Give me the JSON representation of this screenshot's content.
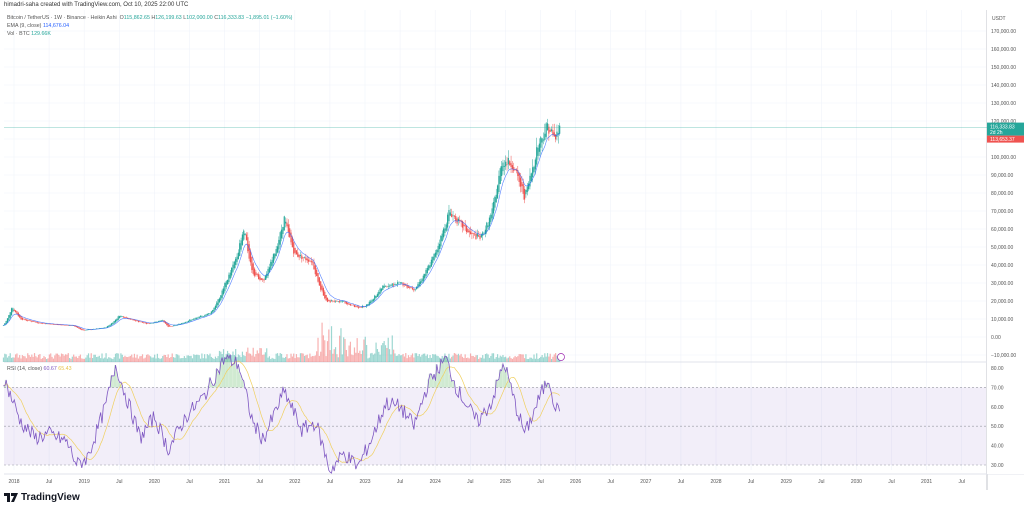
{
  "credit": "himadri-saha created with TradingView.com, Oct 10, 2025 22:00 UTC",
  "legend": {
    "symbol": "Bitcoin / TetherUS · 1W · Binance · Heikin Ashi",
    "o_label": "O",
    "o": "115,862.65",
    "h_label": "H",
    "h": "126,199.63",
    "l_label": "L",
    "l": "102,000.00",
    "c_label": "C",
    "c": "116,333.83",
    "chg": "−1,895.01 (−1.60%)",
    "ema_label": "EMA (9, close)",
    "ema": "114,676.04",
    "vol_label": "Vol · BTC",
    "vol": "129.66K"
  },
  "rsi_legend": {
    "label": "RSI (14, close)",
    "rsi": "60.67",
    "ma": "65.43"
  },
  "price_axis": {
    "unit": "USDT",
    "ticks": [
      "170,000.00",
      "160,000.00",
      "150,000.00",
      "140,000.00",
      "130,000.00",
      "120,000.00",
      "100,000.00",
      "90,000.00",
      "80,000.00",
      "70,000.00",
      "60,000.00",
      "50,000.00",
      "40,000.00",
      "30,000.00",
      "20,000.00",
      "10,000.00",
      "0.00",
      "−10,000.00"
    ],
    "last_price": "116,333.83",
    "countdown": "2d 2h",
    "ema_price": "113,653.37"
  },
  "rsi_axis": {
    "ticks": [
      "80.00",
      "70.00",
      "60.00",
      "50.00",
      "40.00",
      "30.00"
    ]
  },
  "time_axis": [
    "2018",
    "Jul",
    "2019",
    "Jul",
    "2020",
    "Jul",
    "2021",
    "Jul",
    "2022",
    "Jul",
    "2023",
    "Jul",
    "2024",
    "Jul",
    "2025",
    "Jul",
    "2026",
    "Jul",
    "2027",
    "Jul",
    "2028",
    "Jul",
    "2029",
    "Jul",
    "2030",
    "Jul",
    "2031",
    "Jul"
  ],
  "brand": "TradingView",
  "colors": {
    "up": "#26a69a",
    "down": "#ef5350",
    "ema": "#2962ff",
    "rsi": "#7e57c2",
    "rsi_ma": "#f0d060"
  },
  "chart_data": {
    "type": "candlestick",
    "title": "Bitcoin / TetherUS · 1W · Binance · Heikin Ashi",
    "ylabel": "USDT",
    "ylim": [
      -10000,
      175000
    ],
    "xlim": [
      2017.85,
      2032.0
    ],
    "price_path": [
      [
        2017.85,
        6500
      ],
      [
        2017.97,
        17000
      ],
      [
        2018.1,
        10000
      ],
      [
        2018.4,
        7500
      ],
      [
        2018.85,
        6300
      ],
      [
        2018.98,
        3700
      ],
      [
        2019.3,
        5200
      ],
      [
        2019.5,
        12000
      ],
      [
        2019.9,
        7300
      ],
      [
        2020.12,
        9500
      ],
      [
        2020.2,
        5500
      ],
      [
        2020.5,
        9300
      ],
      [
        2020.8,
        13500
      ],
      [
        2021.0,
        29000
      ],
      [
        2021.28,
        60000
      ],
      [
        2021.4,
        36000
      ],
      [
        2021.55,
        31000
      ],
      [
        2021.85,
        66000
      ],
      [
        2022.0,
        46000
      ],
      [
        2022.25,
        42000
      ],
      [
        2022.45,
        20000
      ],
      [
        2022.7,
        19500
      ],
      [
        2022.88,
        16500
      ],
      [
        2023.0,
        17000
      ],
      [
        2023.25,
        28000
      ],
      [
        2023.5,
        30000
      ],
      [
        2023.7,
        26500
      ],
      [
        2023.95,
        42500
      ],
      [
        2024.2,
        70000
      ],
      [
        2024.5,
        57000
      ],
      [
        2024.65,
        55000
      ],
      [
        2024.8,
        68000
      ],
      [
        2024.95,
        98000
      ],
      [
        2025.1,
        96000
      ],
      [
        2025.28,
        78000
      ],
      [
        2025.45,
        105000
      ],
      [
        2025.6,
        118000
      ],
      [
        2025.7,
        110000
      ],
      [
        2025.78,
        116300
      ]
    ],
    "rsi_path": [
      [
        2017.85,
        75
      ],
      [
        2017.95,
        66
      ],
      [
        2018.1,
        52
      ],
      [
        2018.3,
        44
      ],
      [
        2018.5,
        46
      ],
      [
        2018.75,
        42
      ],
      [
        2018.9,
        30
      ],
      [
        2019.05,
        34
      ],
      [
        2019.3,
        60
      ],
      [
        2019.45,
        82
      ],
      [
        2019.55,
        70
      ],
      [
        2019.8,
        44
      ],
      [
        2020.0,
        55
      ],
      [
        2020.2,
        38
      ],
      [
        2020.45,
        55
      ],
      [
        2020.7,
        65
      ],
      [
        2021.0,
        85
      ],
      [
        2021.2,
        82
      ],
      [
        2021.4,
        52
      ],
      [
        2021.55,
        43
      ],
      [
        2021.85,
        68
      ],
      [
        2022.1,
        48
      ],
      [
        2022.3,
        52
      ],
      [
        2022.5,
        27
      ],
      [
        2022.7,
        36
      ],
      [
        2022.9,
        29
      ],
      [
        2023.1,
        44
      ],
      [
        2023.3,
        62
      ],
      [
        2023.5,
        60
      ],
      [
        2023.7,
        50
      ],
      [
        2023.9,
        72
      ],
      [
        2024.15,
        85
      ],
      [
        2024.3,
        70
      ],
      [
        2024.6,
        52
      ],
      [
        2024.8,
        62
      ],
      [
        2024.98,
        83
      ],
      [
        2025.15,
        60
      ],
      [
        2025.28,
        46
      ],
      [
        2025.5,
        66
      ],
      [
        2025.62,
        75
      ],
      [
        2025.72,
        58
      ],
      [
        2025.78,
        61
      ]
    ],
    "rsi_ylim": [
      25,
      82
    ],
    "rsi_bands": [
      30,
      50,
      70
    ]
  }
}
